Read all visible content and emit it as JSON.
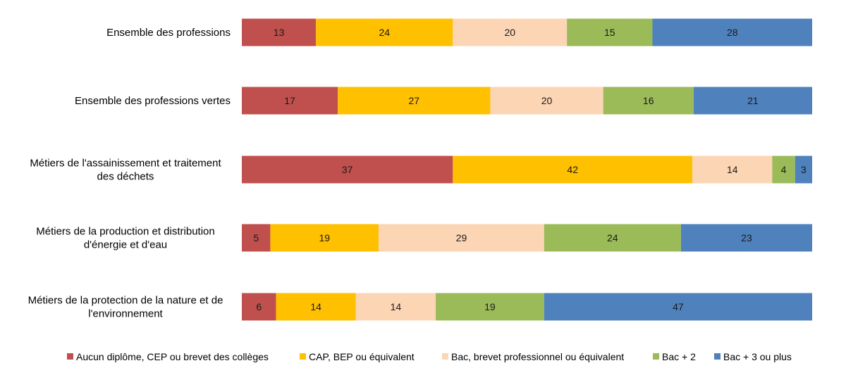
{
  "chart_data": {
    "type": "bar",
    "orientation": "horizontal",
    "stacked": true,
    "stack_total": 100,
    "categories": [
      [
        "Ensemble des professions"
      ],
      [
        "Ensemble des professions vertes"
      ],
      [
        "Métiers de l'assainissement et traitement",
        "des déchets"
      ],
      [
        "Métiers de la production et distribution",
        "d'énergie et d'eau"
      ],
      [
        "Métiers de la protection de la nature et de",
        "l'environnement"
      ]
    ],
    "series": [
      {
        "name": "Aucun diplôme, CEP ou brevet des collèges",
        "color": "#c0504d",
        "values": [
          13,
          17,
          37,
          5,
          6
        ]
      },
      {
        "name": "CAP, BEP ou équivalent",
        "color": "#ffc000",
        "values": [
          24,
          27,
          42,
          19,
          14
        ]
      },
      {
        "name": "Bac, brevet professionnel ou équivalent",
        "color": "#fcd5b5",
        "values": [
          20,
          20,
          14,
          29,
          14
        ]
      },
      {
        "name": "Bac + 2",
        "color": "#9bbb59",
        "values": [
          15,
          16,
          4,
          24,
          19
        ]
      },
      {
        "name": "Bac + 3 ou plus",
        "color": "#4f81bd",
        "values": [
          28,
          21,
          3,
          23,
          47
        ]
      }
    ],
    "data_labels": true,
    "grid": false,
    "legend": "bottom"
  }
}
